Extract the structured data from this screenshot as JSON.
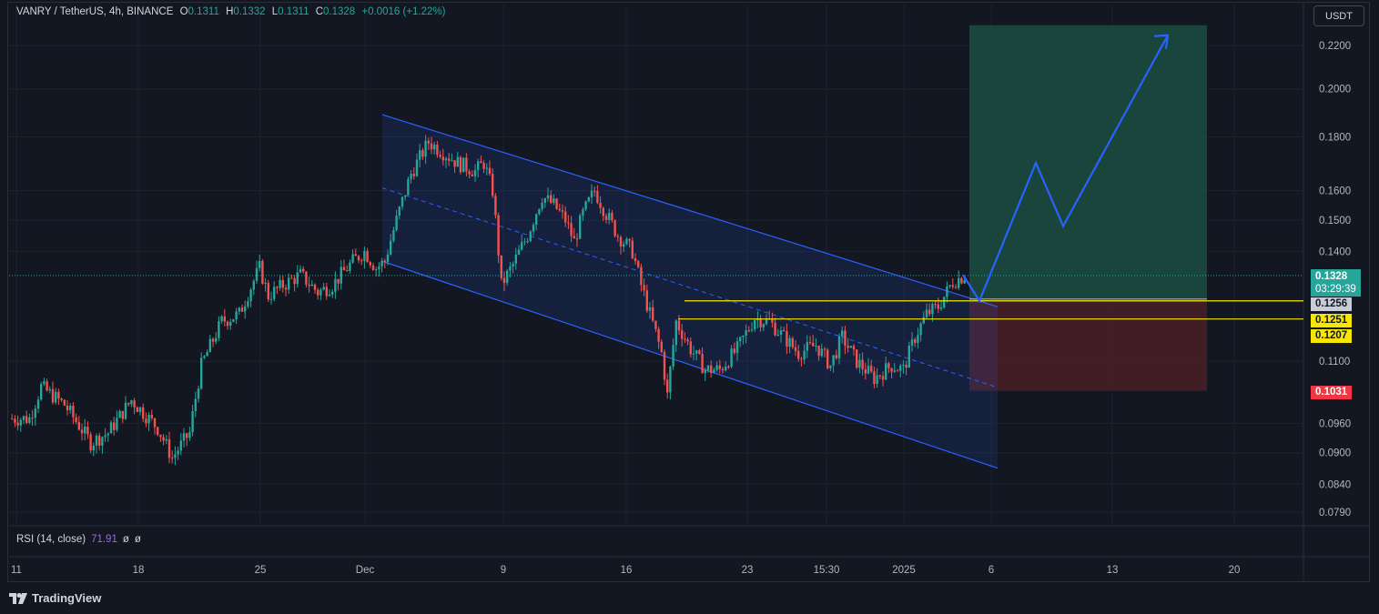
{
  "header": {
    "symbol": "VANRY / TetherUS, 4h, BINANCE",
    "o_label": "O",
    "o_value": "0.1311",
    "h_label": "H",
    "h_value": "0.1332",
    "l_label": "L",
    "l_value": "0.1311",
    "c_label": "C",
    "c_value": "0.1328",
    "change": "+0.0016 (+1.22%)"
  },
  "currency_button": "USDT",
  "rsi": {
    "label": "RSI (14, close)",
    "value": "71.91",
    "nan1": "ø",
    "nan2": "ø"
  },
  "brand": "TradingView",
  "price_tags": {
    "last_price": "0.1328",
    "countdown": "03:29:39",
    "level_upper": "0.1256",
    "level_mid": "0.1251",
    "level_lower": "0.1207",
    "stop": "0.1031"
  },
  "colors": {
    "background": "#131722",
    "up": "#26a69a",
    "down": "#ef5350",
    "channel": "#2962ff",
    "level": "#f7e600",
    "target_zone": "#1b4d42",
    "stop_zone": "#4a1f27",
    "arrow": "#2962ff"
  },
  "chart_data": {
    "type": "candlestick",
    "symbol": "VANRY/USDT",
    "interval": "4h",
    "y_scale": "log",
    "y_ticks": [
      "0.2200",
      "0.2000",
      "0.1800",
      "0.1600",
      "0.1500",
      "0.1400",
      "0.1100",
      "0.0960",
      "0.0900",
      "0.0840",
      "0.0790"
    ],
    "x_ticks": [
      "11",
      "18",
      "25",
      "Dec",
      "9",
      "16",
      "23",
      "15:30",
      "2025",
      "6",
      "13",
      "20"
    ],
    "price_path": [
      [
        0,
        0.097
      ],
      [
        6,
        0.097
      ],
      [
        10,
        0.104
      ],
      [
        18,
        0.1
      ],
      [
        27,
        0.092
      ],
      [
        33,
        0.094
      ],
      [
        41,
        0.101
      ],
      [
        50,
        0.095
      ],
      [
        55,
        0.089
      ],
      [
        61,
        0.094
      ],
      [
        65,
        0.109
      ],
      [
        72,
        0.12
      ],
      [
        78,
        0.122
      ],
      [
        85,
        0.135
      ],
      [
        88,
        0.127
      ],
      [
        93,
        0.13
      ],
      [
        99,
        0.133
      ],
      [
        105,
        0.128
      ],
      [
        110,
        0.13
      ],
      [
        117,
        0.137
      ],
      [
        121,
        0.14
      ],
      [
        125,
        0.135
      ],
      [
        128,
        0.137
      ],
      [
        132,
        0.15
      ],
      [
        137,
        0.166
      ],
      [
        143,
        0.178
      ],
      [
        148,
        0.174
      ],
      [
        153,
        0.17
      ],
      [
        159,
        0.167
      ],
      [
        162,
        0.17
      ],
      [
        165,
        0.16
      ],
      [
        168,
        0.13
      ],
      [
        172,
        0.136
      ],
      [
        177,
        0.145
      ],
      [
        182,
        0.158
      ],
      [
        186,
        0.155
      ],
      [
        190,
        0.15
      ],
      [
        193,
        0.143
      ],
      [
        196,
        0.152
      ],
      [
        200,
        0.16
      ],
      [
        204,
        0.152
      ],
      [
        208,
        0.145
      ],
      [
        213,
        0.14
      ],
      [
        216,
        0.13
      ],
      [
        219,
        0.122
      ],
      [
        223,
        0.112
      ],
      [
        225,
        0.102
      ],
      [
        228,
        0.12
      ],
      [
        233,
        0.113
      ],
      [
        238,
        0.108
      ],
      [
        243,
        0.108
      ],
      [
        249,
        0.113
      ],
      [
        255,
        0.121
      ],
      [
        260,
        0.12
      ],
      [
        265,
        0.116
      ],
      [
        270,
        0.112
      ],
      [
        276,
        0.114
      ],
      [
        281,
        0.109
      ],
      [
        285,
        0.116
      ],
      [
        290,
        0.11
      ],
      [
        296,
        0.106
      ],
      [
        302,
        0.109
      ],
      [
        306,
        0.108
      ],
      [
        310,
        0.116
      ],
      [
        314,
        0.122
      ],
      [
        318,
        0.124
      ],
      [
        323,
        0.131
      ],
      [
        327,
        0.1328
      ]
    ],
    "channel": {
      "upper": [
        [
          0.189,
          "Dec"
        ],
        [
          0.124,
          "6"
        ]
      ],
      "lower": [
        [
          0.137,
          "Dec"
        ],
        [
          0.087,
          "6"
        ]
      ],
      "style": "descending parallel channel with dashed midline"
    },
    "levels": [
      0.1256,
      0.1251,
      0.1207
    ],
    "position": {
      "entry": 0.1256,
      "target": 0.23,
      "stop": 0.1031
    },
    "projection": [
      0.1256,
      0.133,
      0.17,
      0.148,
      0.225
    ],
    "rsi_value": 71.91
  }
}
